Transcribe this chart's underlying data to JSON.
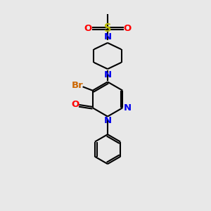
{
  "bg_color": "#e8e8e8",
  "bond_color": "#000000",
  "N_color": "#0000ee",
  "O_color": "#ff0000",
  "S_color": "#bbbb00",
  "Br_color": "#cc6600",
  "line_width": 1.5,
  "font_size": 9.5,
  "xlim": [
    0,
    10
  ],
  "ylim": [
    0,
    10
  ]
}
